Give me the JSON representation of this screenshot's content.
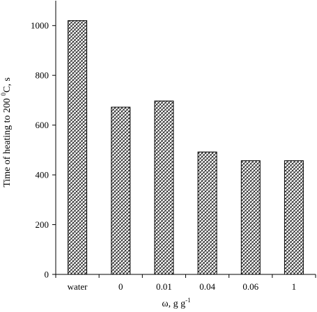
{
  "chart_data": {
    "type": "bar",
    "categories": [
      "water",
      "0",
      "0.01",
      "0.04",
      "0.06",
      "1"
    ],
    "values": [
      1020,
      672,
      697,
      492,
      457,
      457
    ],
    "title": "",
    "xlabel": "ω, g g",
    "xlabel_sup": "-1",
    "ylabel": "Time of heating to 200 ",
    "ylabel_sup": "0",
    "ylabel_tail": "C, s",
    "ylim": [
      0,
      1100
    ],
    "yticks": [
      0,
      200,
      400,
      600,
      800,
      1000
    ],
    "grid": false,
    "legend": "none",
    "bar_pattern": "crosshatch",
    "colors": {
      "bar_stroke": "#000000",
      "pattern": "#000000",
      "axis": "#000000"
    }
  }
}
